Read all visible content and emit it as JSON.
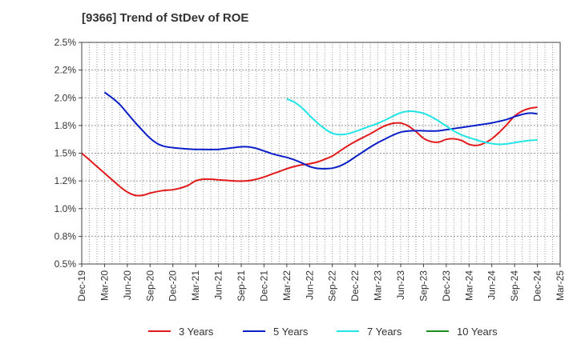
{
  "chart_data": {
    "type": "line",
    "title": "[9366]  Trend of StDev of ROE",
    "xlabel": "",
    "ylabel": "",
    "ylim": [
      0.5,
      2.5
    ],
    "grid": true,
    "legend_position": "bottom",
    "y_ticks": [
      "0.5%",
      "0.8%",
      "1.0%",
      "1.2%",
      "1.5%",
      "1.8%",
      "2.0%",
      "2.2%",
      "2.5%"
    ],
    "x_ticks": [
      "Dec-19",
      "Mar-20",
      "Jun-20",
      "Sep-20",
      "Dec-20",
      "Mar-21",
      "Jun-21",
      "Sep-21",
      "Dec-21",
      "Mar-22",
      "Jun-22",
      "Sep-22",
      "Dec-22",
      "Mar-23",
      "Jun-23",
      "Sep-23",
      "Dec-23",
      "Mar-24",
      "Jun-24",
      "Sep-24",
      "Dec-24",
      "Mar-25"
    ],
    "series": [
      {
        "name": "3 Years",
        "color": "#e31a1c",
        "points": [
          [
            "Dec-19",
            1.5
          ],
          [
            "Jan-20",
            1.44
          ],
          [
            "Feb-20",
            1.38
          ],
          [
            "Mar-20",
            1.32
          ],
          [
            "Apr-20",
            1.26
          ],
          [
            "May-20",
            1.2
          ],
          [
            "Jun-20",
            1.15
          ],
          [
            "Jul-20",
            1.12
          ],
          [
            "Aug-20",
            1.12
          ],
          [
            "Sep-20",
            1.14
          ],
          [
            "Oct-20",
            1.155
          ],
          [
            "Nov-20",
            1.165
          ],
          [
            "Dec-20",
            1.17
          ],
          [
            "Jan-21",
            1.185
          ],
          [
            "Feb-21",
            1.21
          ],
          [
            "Mar-21",
            1.25
          ],
          [
            "Apr-21",
            1.265
          ],
          [
            "May-21",
            1.265
          ],
          [
            "Jun-21",
            1.26
          ],
          [
            "Jul-21",
            1.255
          ],
          [
            "Aug-21",
            1.25
          ],
          [
            "Sep-21",
            1.248
          ],
          [
            "Oct-21",
            1.252
          ],
          [
            "Nov-21",
            1.265
          ],
          [
            "Dec-21",
            1.285
          ],
          [
            "Jan-22",
            1.31
          ],
          [
            "Feb-22",
            1.335
          ],
          [
            "Mar-22",
            1.36
          ],
          [
            "Apr-22",
            1.38
          ],
          [
            "May-22",
            1.395
          ],
          [
            "Jun-22",
            1.405
          ],
          [
            "Jul-22",
            1.42
          ],
          [
            "Aug-22",
            1.445
          ],
          [
            "Sep-22",
            1.475
          ],
          [
            "Oct-22",
            1.52
          ],
          [
            "Nov-22",
            1.565
          ],
          [
            "Dec-22",
            1.605
          ],
          [
            "Jan-23",
            1.64
          ],
          [
            "Feb-23",
            1.675
          ],
          [
            "Mar-23",
            1.715
          ],
          [
            "Apr-23",
            1.75
          ],
          [
            "May-23",
            1.77
          ],
          [
            "Jun-23",
            1.772
          ],
          [
            "Jul-23",
            1.745
          ],
          [
            "Aug-23",
            1.695
          ],
          [
            "Sep-23",
            1.635
          ],
          [
            "Oct-23",
            1.605
          ],
          [
            "Nov-23",
            1.6
          ],
          [
            "Dec-23",
            1.625
          ],
          [
            "Jan-24",
            1.63
          ],
          [
            "Feb-24",
            1.615
          ],
          [
            "Mar-24",
            1.58
          ],
          [
            "Apr-24",
            1.57
          ],
          [
            "May-24",
            1.59
          ],
          [
            "Jun-24",
            1.63
          ],
          [
            "Jul-24",
            1.69
          ],
          [
            "Aug-24",
            1.76
          ],
          [
            "Sep-24",
            1.835
          ],
          [
            "Oct-24",
            1.88
          ],
          [
            "Nov-24",
            1.905
          ],
          [
            "Dec-24",
            1.915
          ]
        ]
      },
      {
        "name": "5 Years",
        "color": "#0a1ec8",
        "points": [
          [
            "Mar-20",
            2.05
          ],
          [
            "Apr-20",
            2.0
          ],
          [
            "May-20",
            1.94
          ],
          [
            "Jun-20",
            1.86
          ],
          [
            "Jul-20",
            1.78
          ],
          [
            "Aug-20",
            1.705
          ],
          [
            "Sep-20",
            1.635
          ],
          [
            "Oct-20",
            1.585
          ],
          [
            "Nov-20",
            1.56
          ],
          [
            "Dec-20",
            1.55
          ],
          [
            "Jan-21",
            1.543
          ],
          [
            "Feb-21",
            1.538
          ],
          [
            "Mar-21",
            1.535
          ],
          [
            "Apr-21",
            1.534
          ],
          [
            "May-21",
            1.533
          ],
          [
            "Jun-21",
            1.535
          ],
          [
            "Jul-21",
            1.542
          ],
          [
            "Aug-21",
            1.55
          ],
          [
            "Sep-21",
            1.558
          ],
          [
            "Oct-21",
            1.557
          ],
          [
            "Nov-21",
            1.543
          ],
          [
            "Dec-21",
            1.52
          ],
          [
            "Jan-22",
            1.497
          ],
          [
            "Feb-22",
            1.478
          ],
          [
            "Mar-22",
            1.462
          ],
          [
            "Apr-22",
            1.44
          ],
          [
            "May-22",
            1.412
          ],
          [
            "Jun-22",
            1.38
          ],
          [
            "Jul-22",
            1.363
          ],
          [
            "Aug-22",
            1.36
          ],
          [
            "Sep-22",
            1.365
          ],
          [
            "Oct-22",
            1.385
          ],
          [
            "Nov-22",
            1.42
          ],
          [
            "Dec-22",
            1.465
          ],
          [
            "Jan-23",
            1.51
          ],
          [
            "Feb-23",
            1.555
          ],
          [
            "Mar-23",
            1.595
          ],
          [
            "Apr-23",
            1.63
          ],
          [
            "May-23",
            1.663
          ],
          [
            "Jun-23",
            1.69
          ],
          [
            "Jul-23",
            1.7
          ],
          [
            "Aug-23",
            1.703
          ],
          [
            "Sep-23",
            1.702
          ],
          [
            "Oct-23",
            1.7
          ],
          [
            "Nov-23",
            1.702
          ],
          [
            "Dec-23",
            1.712
          ],
          [
            "Jan-24",
            1.722
          ],
          [
            "Feb-24",
            1.732
          ],
          [
            "Mar-24",
            1.742
          ],
          [
            "Apr-24",
            1.752
          ],
          [
            "May-24",
            1.762
          ],
          [
            "Jun-24",
            1.774
          ],
          [
            "Jul-24",
            1.788
          ],
          [
            "Aug-24",
            1.805
          ],
          [
            "Sep-24",
            1.83
          ],
          [
            "Oct-24",
            1.85
          ],
          [
            "Nov-24",
            1.862
          ],
          [
            "Dec-24",
            1.855
          ]
        ]
      },
      {
        "name": "7 Years",
        "color": "#22e5e5",
        "points": [
          [
            "Mar-22",
            1.99
          ],
          [
            "Apr-22",
            1.96
          ],
          [
            "May-22",
            1.91
          ],
          [
            "Jun-22",
            1.84
          ],
          [
            "Jul-22",
            1.775
          ],
          [
            "Aug-22",
            1.72
          ],
          [
            "Sep-22",
            1.68
          ],
          [
            "Oct-22",
            1.668
          ],
          [
            "Nov-22",
            1.675
          ],
          [
            "Dec-22",
            1.695
          ],
          [
            "Jan-23",
            1.72
          ],
          [
            "Feb-23",
            1.745
          ],
          [
            "Mar-23",
            1.77
          ],
          [
            "Apr-23",
            1.8
          ],
          [
            "May-23",
            1.835
          ],
          [
            "Jun-23",
            1.865
          ],
          [
            "Jul-23",
            1.878
          ],
          [
            "Aug-23",
            1.875
          ],
          [
            "Sep-23",
            1.86
          ],
          [
            "Oct-23",
            1.83
          ],
          [
            "Nov-23",
            1.79
          ],
          [
            "Dec-23",
            1.745
          ],
          [
            "Jan-24",
            1.7
          ],
          [
            "Feb-24",
            1.665
          ],
          [
            "Mar-24",
            1.64
          ],
          [
            "Apr-24",
            1.62
          ],
          [
            "May-24",
            1.6
          ],
          [
            "Jun-24",
            1.587
          ],
          [
            "Jul-24",
            1.58
          ],
          [
            "Aug-24",
            1.585
          ],
          [
            "Sep-24",
            1.595
          ],
          [
            "Oct-24",
            1.607
          ],
          [
            "Nov-24",
            1.615
          ],
          [
            "Dec-24",
            1.62
          ]
        ]
      },
      {
        "name": "10 Years",
        "color": "#1e8c1e",
        "points": []
      }
    ]
  }
}
